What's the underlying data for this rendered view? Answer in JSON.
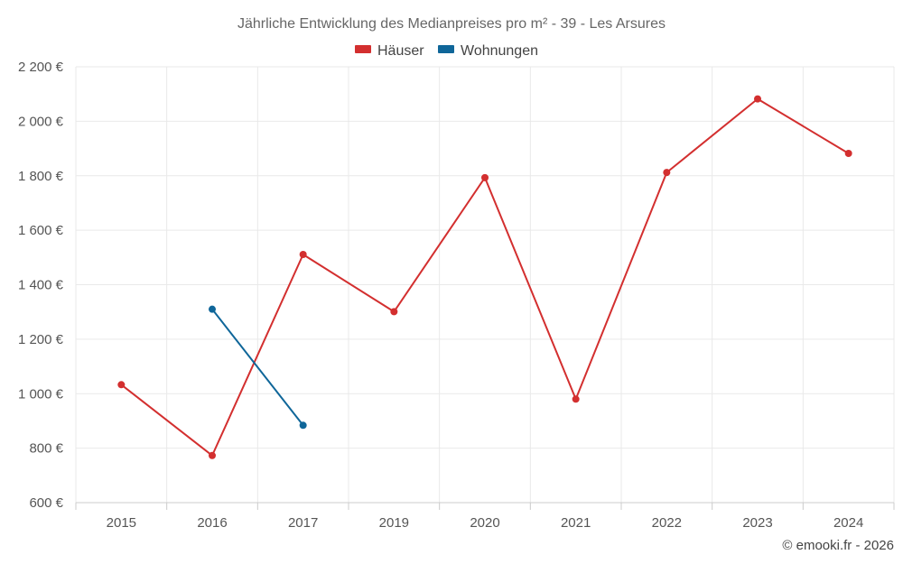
{
  "chart_data": {
    "type": "line",
    "title": "Jährliche Entwicklung des Medianpreises pro m² - 39 - Les Arsures",
    "categories": [
      "2015",
      "2016",
      "2017",
      "2019",
      "2020",
      "2021",
      "2022",
      "2023",
      "2024"
    ],
    "y_ticks": [
      "600 €",
      "800 €",
      "1 000 €",
      "1 200 €",
      "1 400 €",
      "1 600 €",
      "1 800 €",
      "2 000 €",
      "2 200 €"
    ],
    "ylim": [
      600,
      2200
    ],
    "grid": true,
    "legend_position": "top-center",
    "series": [
      {
        "name": "Häuser",
        "color": "#d32f2f",
        "values": [
          1033,
          773,
          1511,
          1301,
          1793,
          980,
          1812,
          2082,
          1882
        ]
      },
      {
        "name": "Wohnungen",
        "color": "#0f6699",
        "values": [
          null,
          1310,
          884,
          null,
          null,
          null,
          null,
          null,
          null
        ]
      }
    ]
  },
  "credit": "© emooki.fr - 2026"
}
